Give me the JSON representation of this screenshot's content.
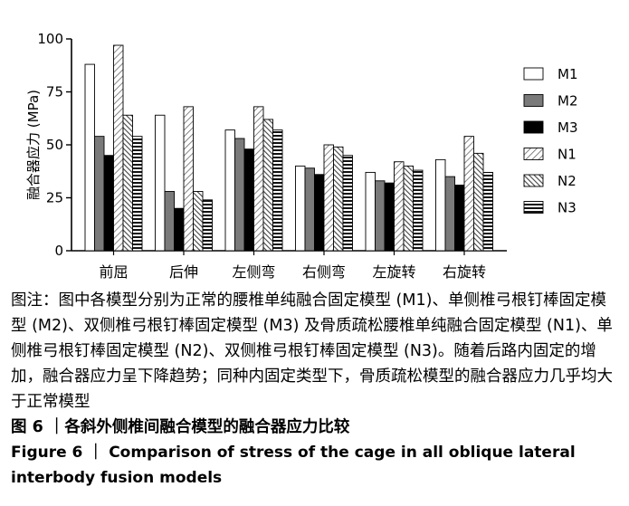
{
  "chart_data": {
    "type": "bar",
    "ylabel": "融合器应力 (MPa)",
    "ylim": [
      0,
      100
    ],
    "yticks": [
      "0",
      "25",
      "50",
      "75",
      "100"
    ],
    "categories": [
      "前屈",
      "后伸",
      "左侧弯",
      "右侧弯",
      "左旋转",
      "右旋转"
    ],
    "series": [
      {
        "name": "M1",
        "pattern": "white",
        "values": [
          88,
          64,
          57,
          40,
          37,
          43
        ]
      },
      {
        "name": "M2",
        "pattern": "gray",
        "values": [
          54,
          28,
          53,
          39,
          33,
          35
        ]
      },
      {
        "name": "M3",
        "pattern": "black",
        "values": [
          45,
          20,
          48,
          36,
          32,
          31
        ]
      },
      {
        "name": "N1",
        "pattern": "diag-light",
        "values": [
          97,
          68,
          68,
          50,
          42,
          54
        ]
      },
      {
        "name": "N2",
        "pattern": "diag-dark",
        "values": [
          64,
          28,
          62,
          49,
          40,
          46
        ]
      },
      {
        "name": "N3",
        "pattern": "hstripe",
        "values": [
          54,
          24,
          57,
          45,
          38,
          37
        ]
      }
    ],
    "legend_position": "right",
    "grid": false
  },
  "caption": {
    "note": "图注：图中各模型分别为正常的腰椎单纯融合固定模型 (M1)、单侧椎弓根钉棒固定模型 (M2)、双侧椎弓根钉棒固定模型 (M3) 及骨质疏松腰椎单纯融合固定模型 (N1)、单侧椎弓根钉棒固定模型 (N2)、双侧椎弓根钉棒固定模型 (N3)。随着后路内固定的增加，融合器应力呈下降趋势；同种内固定类型下，骨质疏松模型的融合器应力几乎均大于正常模型",
    "title_cn": "图 6 ｜各斜外侧椎间融合模型的融合器应力比较",
    "title_en": "Figure 6 ｜ Comparison of stress of the cage in all oblique lateral interbody fusion models"
  }
}
